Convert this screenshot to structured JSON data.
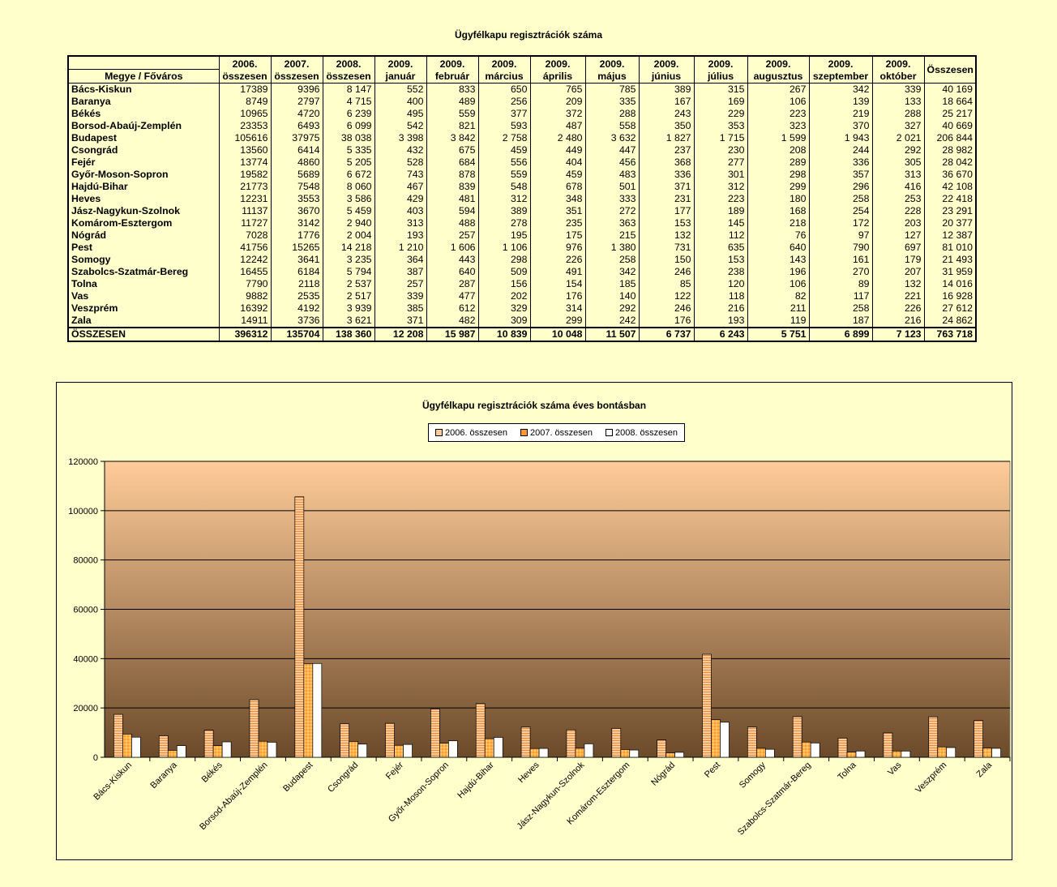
{
  "table": {
    "title": "Ügyfélkapu regisztrációk száma",
    "headers": [
      [
        "",
        "Megye / Főváros"
      ],
      [
        "2006.",
        "összesen"
      ],
      [
        "2007.",
        "összesen"
      ],
      [
        "2008.",
        "összesen"
      ],
      [
        "2009.",
        "január"
      ],
      [
        "2009.",
        "február"
      ],
      [
        "2009.",
        "március"
      ],
      [
        "2009.",
        "április"
      ],
      [
        "2009.",
        "május"
      ],
      [
        "2009.",
        "június"
      ],
      [
        "2009.",
        "július"
      ],
      [
        "2009.",
        "augusztus"
      ],
      [
        "2009.",
        "szeptember"
      ],
      [
        "2009.",
        "október"
      ],
      [
        "Összesen",
        ""
      ]
    ],
    "rows": [
      [
        "Bács-Kiskun",
        "17389",
        "9396",
        "8 147",
        "552",
        "833",
        "650",
        "765",
        "785",
        "389",
        "315",
        "267",
        "342",
        "339",
        "40 169"
      ],
      [
        "Baranya",
        "8749",
        "2797",
        "4 715",
        "400",
        "489",
        "256",
        "209",
        "335",
        "167",
        "169",
        "106",
        "139",
        "133",
        "18 664"
      ],
      [
        "Békés",
        "10965",
        "4720",
        "6 239",
        "495",
        "559",
        "377",
        "372",
        "288",
        "243",
        "229",
        "223",
        "219",
        "288",
        "25 217"
      ],
      [
        "Borsod-Abaúj-Zemplén",
        "23353",
        "6493",
        "6 099",
        "542",
        "821",
        "593",
        "487",
        "558",
        "350",
        "353",
        "323",
        "370",
        "327",
        "40 669"
      ],
      [
        "Budapest",
        "105616",
        "37975",
        "38 038",
        "3 398",
        "3 842",
        "2 758",
        "2 480",
        "3 632",
        "1 827",
        "1 715",
        "1 599",
        "1 943",
        "2 021",
        "206 844"
      ],
      [
        "Csongrád",
        "13560",
        "6414",
        "5 335",
        "432",
        "675",
        "459",
        "449",
        "447",
        "237",
        "230",
        "208",
        "244",
        "292",
        "28 982"
      ],
      [
        "Fejér",
        "13774",
        "4860",
        "5 205",
        "528",
        "684",
        "556",
        "404",
        "456",
        "368",
        "277",
        "289",
        "336",
        "305",
        "28 042"
      ],
      [
        "Győr-Moson-Sopron",
        "19582",
        "5689",
        "6 672",
        "743",
        "878",
        "559",
        "459",
        "483",
        "336",
        "301",
        "298",
        "357",
        "313",
        "36 670"
      ],
      [
        "Hajdú-Bihar",
        "21773",
        "7548",
        "8 060",
        "467",
        "839",
        "548",
        "678",
        "501",
        "371",
        "312",
        "299",
        "296",
        "416",
        "42 108"
      ],
      [
        "Heves",
        "12231",
        "3553",
        "3 586",
        "429",
        "481",
        "312",
        "348",
        "333",
        "231",
        "223",
        "180",
        "258",
        "253",
        "22 418"
      ],
      [
        "Jász-Nagykun-Szolnok",
        "11137",
        "3670",
        "5 459",
        "403",
        "594",
        "389",
        "351",
        "272",
        "177",
        "189",
        "168",
        "254",
        "228",
        "23 291"
      ],
      [
        "Komárom-Esztergom",
        "11727",
        "3142",
        "2 940",
        "313",
        "488",
        "278",
        "235",
        "363",
        "153",
        "145",
        "218",
        "172",
        "203",
        "20 377"
      ],
      [
        "Nógrád",
        "7028",
        "1776",
        "2 004",
        "193",
        "257",
        "195",
        "175",
        "215",
        "132",
        "112",
        "76",
        "97",
        "127",
        "12 387"
      ],
      [
        "Pest",
        "41756",
        "15265",
        "14 218",
        "1 210",
        "1 606",
        "1 106",
        "976",
        "1 380",
        "731",
        "635",
        "640",
        "790",
        "697",
        "81 010"
      ],
      [
        "Somogy",
        "12242",
        "3641",
        "3 235",
        "364",
        "443",
        "298",
        "226",
        "258",
        "150",
        "153",
        "143",
        "161",
        "179",
        "21 493"
      ],
      [
        "Szabolcs-Szatmár-Bereg",
        "16455",
        "6184",
        "5 794",
        "387",
        "640",
        "509",
        "491",
        "342",
        "246",
        "238",
        "196",
        "270",
        "207",
        "31 959"
      ],
      [
        "Tolna",
        "7790",
        "2118",
        "2 537",
        "257",
        "287",
        "156",
        "154",
        "185",
        "85",
        "120",
        "106",
        "89",
        "132",
        "14 016"
      ],
      [
        "Vas",
        "9882",
        "2535",
        "2 517",
        "339",
        "477",
        "202",
        "176",
        "140",
        "122",
        "118",
        "82",
        "117",
        "221",
        "16 928"
      ],
      [
        "Veszprém",
        "16392",
        "4192",
        "3 939",
        "385",
        "612",
        "329",
        "314",
        "292",
        "246",
        "216",
        "211",
        "258",
        "226",
        "27 612"
      ],
      [
        "Zala",
        "14911",
        "3736",
        "3 621",
        "371",
        "482",
        "309",
        "299",
        "242",
        "176",
        "193",
        "119",
        "187",
        "216",
        "24 862"
      ]
    ],
    "total": [
      "ÖSSZESEN",
      "396312",
      "135704",
      "138 360",
      "12 208",
      "15 987",
      "10 839",
      "10 048",
      "11 507",
      "6 737",
      "6 243",
      "5 751",
      "6 899",
      "7 123",
      "763 718"
    ]
  },
  "chart_data": {
    "type": "bar",
    "title": "Ügyfélkapu regisztrációk száma éves bontásban",
    "categories": [
      "Bács-Kiskun",
      "Baranya",
      "Békés",
      "Borsod-Abaúj-Zemplén",
      "Budapest",
      "Csongrád",
      "Fejér",
      "Győr-Moson-Sopron",
      "Hajdú-Bihar",
      "Heves",
      "Jász-Nagykun-Szolnok",
      "Komárom-Esztergom",
      "Nógrád",
      "Pest",
      "Somogy",
      "Szabolcs-Szatmár-Bereg",
      "Tolna",
      "Vas",
      "Veszprém",
      "Zala"
    ],
    "series": [
      {
        "name": "2006. összesen",
        "values": [
          17389,
          8749,
          10965,
          23353,
          105616,
          13560,
          13774,
          19582,
          21773,
          12231,
          11137,
          11727,
          7028,
          41756,
          12242,
          16455,
          7790,
          9882,
          16392,
          14911
        ],
        "color": "#ffcc99",
        "pattern": "horizontal-lines"
      },
      {
        "name": "2007. összesen",
        "values": [
          9396,
          2797,
          4720,
          6493,
          37975,
          6414,
          4860,
          5689,
          7548,
          3553,
          3670,
          3142,
          1776,
          15265,
          3641,
          6184,
          2118,
          2535,
          4192,
          3736
        ],
        "color": "#ff9933",
        "pattern": "diamond"
      },
      {
        "name": "2008. összesen",
        "values": [
          8147,
          4715,
          6239,
          6099,
          38038,
          5335,
          5205,
          6672,
          8060,
          3586,
          5459,
          2940,
          2004,
          14218,
          3235,
          5794,
          2537,
          2517,
          3939,
          3621
        ],
        "color": "#ffffff",
        "pattern": "solid"
      }
    ],
    "ylim": [
      0,
      120000
    ],
    "yticks": [
      0,
      20000,
      40000,
      60000,
      80000,
      100000,
      120000
    ],
    "grid": true,
    "legend_position": "top",
    "plot_gradient": [
      "#ffcc99",
      "#6b4a2a"
    ]
  }
}
